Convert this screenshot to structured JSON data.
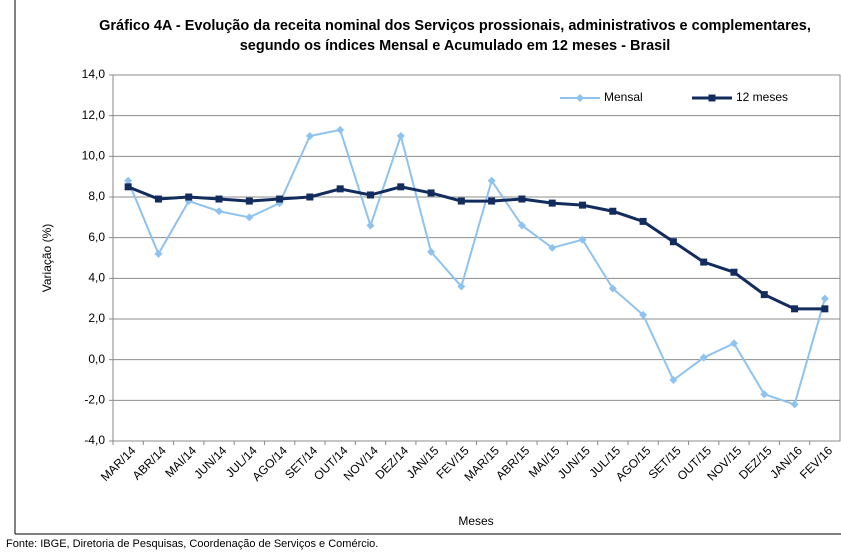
{
  "chart_data": {
    "type": "line",
    "title": "Gráfico 4A - Evolução da receita nominal dos Serviços prossionais, administrativos e complementares, segundo os índices Mensal e Acumulado em 12 meses - Brasil",
    "x_label": "Meses",
    "y_label": "Variação (%)",
    "source": "Fonte: IBGE, Diretoria de Pesquisas, Coordenação de Serviços e Comércio.",
    "categories": [
      "MAR/14",
      "ABR/14",
      "MAI/14",
      "JUN/14",
      "JUL/14",
      "AGO/14",
      "SET/14",
      "OUT/14",
      "NOV/14",
      "DEZ/14",
      "JAN/15",
      "FEV/15",
      "MAR/15",
      "ABR/15",
      "MAI/15",
      "JUN/15",
      "JUL/15",
      "AGO/15",
      "SET/15",
      "OUT/15",
      "NOV/15",
      "DEZ/15",
      "JAN/16",
      "FEV/16"
    ],
    "series": [
      {
        "name": "Mensal",
        "color": "#8ec3f0",
        "marker": "diamond",
        "values": [
          8.8,
          5.2,
          7.8,
          7.3,
          7.0,
          7.7,
          11.0,
          11.3,
          6.6,
          11.0,
          5.3,
          3.6,
          8.8,
          6.6,
          5.5,
          5.9,
          3.5,
          2.2,
          -1.0,
          0.1,
          0.8,
          -1.7,
          -2.2,
          3.0
        ]
      },
      {
        "name": "12 meses",
        "color": "#132c5e",
        "marker": "square",
        "values": [
          8.5,
          7.9,
          8.0,
          7.9,
          7.8,
          7.9,
          8.0,
          8.4,
          8.1,
          8.5,
          8.2,
          7.8,
          7.8,
          7.9,
          7.7,
          7.6,
          7.3,
          6.8,
          5.8,
          4.8,
          4.3,
          3.2,
          2.5,
          2.5
        ]
      }
    ],
    "ylim": [
      -4,
      14
    ],
    "yticks": [
      {
        "value": -4,
        "label": "-4,0"
      },
      {
        "value": -2,
        "label": "-2,0"
      },
      {
        "value": 0,
        "label": "0,0"
      },
      {
        "value": 2,
        "label": "2,0"
      },
      {
        "value": 4,
        "label": "4,0"
      },
      {
        "value": 6,
        "label": "6,0"
      },
      {
        "value": 8,
        "label": "8,0"
      },
      {
        "value": 10,
        "label": "10,0"
      },
      {
        "value": 12,
        "label": "12,0"
      },
      {
        "value": 14,
        "label": "14,0"
      }
    ],
    "grid": true,
    "legend": "top-right"
  }
}
